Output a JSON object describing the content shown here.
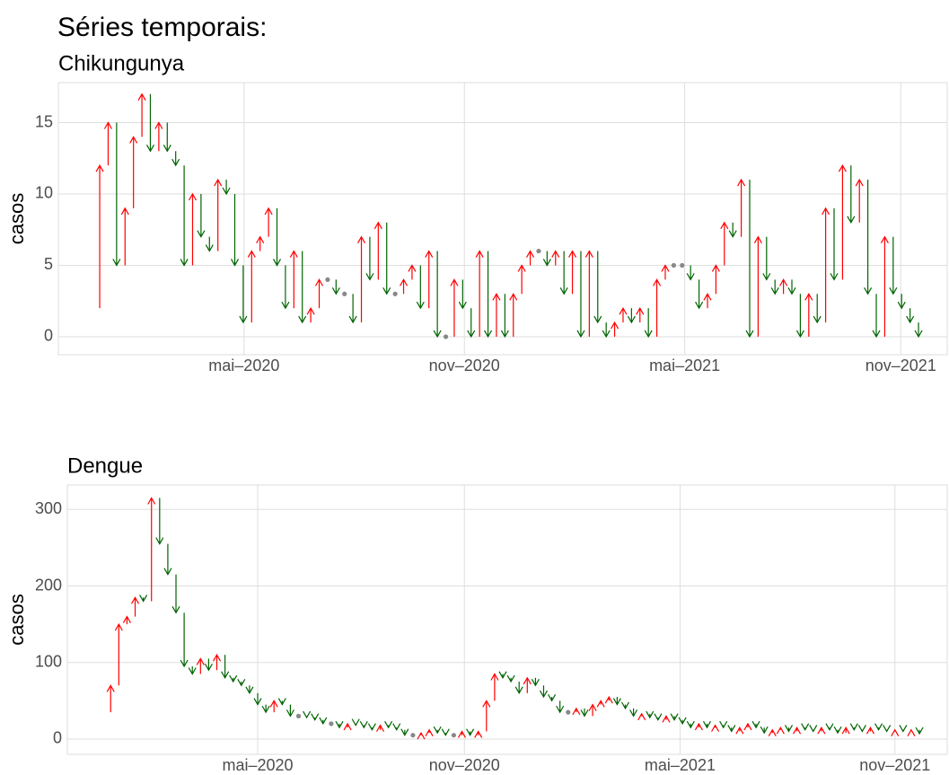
{
  "title": "Séries temporais:",
  "chart_data": [
    {
      "type": "arrow",
      "title": "Chikungunya",
      "y_label": "casos",
      "values": [
        2,
        12,
        15,
        5,
        9,
        14,
        17,
        13,
        15,
        13,
        12,
        5,
        10,
        7,
        6,
        11,
        10,
        5,
        1,
        6,
        7,
        9,
        5,
        2,
        6,
        1,
        2,
        4,
        4,
        3,
        3,
        1,
        7,
        4,
        8,
        3,
        3,
        4,
        5,
        2,
        6,
        0,
        0,
        4,
        2,
        0,
        6,
        0,
        3,
        0,
        3,
        5,
        6,
        6,
        5,
        6,
        3,
        6,
        0,
        6,
        1,
        0,
        1,
        2,
        1,
        2,
        0,
        4,
        5,
        5,
        5,
        4,
        2,
        3,
        5,
        8,
        7,
        11,
        0,
        7,
        4,
        3,
        4,
        3,
        0,
        3,
        1,
        9,
        4,
        12,
        8,
        11,
        3,
        0,
        7,
        3,
        2,
        1,
        0
      ],
      "colors": {
        "up": "#ff0000",
        "down": "#006400",
        "same": "#888888"
      },
      "xlim": [
        -3.9,
        101.4
      ],
      "xticks": [
        {
          "value": 18.1,
          "label": "mai–2020"
        },
        {
          "value": 44.2,
          "label": "nov–2020"
        },
        {
          "value": 70.3,
          "label": "mai–2021"
        },
        {
          "value": 95.9,
          "label": "nov–2021"
        }
      ],
      "ylim": [
        -1.26,
        17.8
      ],
      "yticks": [
        0,
        5,
        10,
        15
      ],
      "grid": true
    },
    {
      "type": "arrow",
      "title": "Dengue",
      "y_label": "casos",
      "values": [
        35,
        70,
        150,
        160,
        185,
        180,
        315,
        255,
        215,
        165,
        95,
        85,
        105,
        90,
        110,
        80,
        75,
        70,
        60,
        45,
        35,
        50,
        45,
        30,
        30,
        28,
        25,
        20,
        20,
        15,
        20,
        18,
        15,
        12,
        18,
        15,
        12,
        5,
        5,
        8,
        12,
        8,
        5,
        5,
        10,
        5,
        10,
        50,
        85,
        80,
        75,
        60,
        80,
        70,
        55,
        50,
        35,
        35,
        40,
        30,
        45,
        50,
        55,
        45,
        40,
        30,
        33,
        28,
        25,
        30,
        25,
        20,
        15,
        20,
        15,
        18,
        15,
        10,
        15,
        20,
        15,
        8,
        12,
        15,
        10,
        15,
        12,
        10,
        15,
        12,
        8,
        15,
        12,
        10,
        15,
        12,
        10,
        12,
        10,
        12,
        7
      ],
      "colors": {
        "up": "#ff0000",
        "down": "#006400",
        "same": "#888888"
      },
      "xlim": [
        -4.3,
        103.4
      ],
      "xticks": [
        {
          "value": 19,
          "label": "mai–2020"
        },
        {
          "value": 44.3,
          "label": "nov–2020"
        },
        {
          "value": 70.7,
          "label": "mai–2021"
        },
        {
          "value": 97,
          "label": "nov–2021"
        }
      ],
      "ylim": [
        -20,
        332
      ],
      "yticks": [
        0,
        100,
        200,
        300
      ],
      "grid": true
    }
  ]
}
